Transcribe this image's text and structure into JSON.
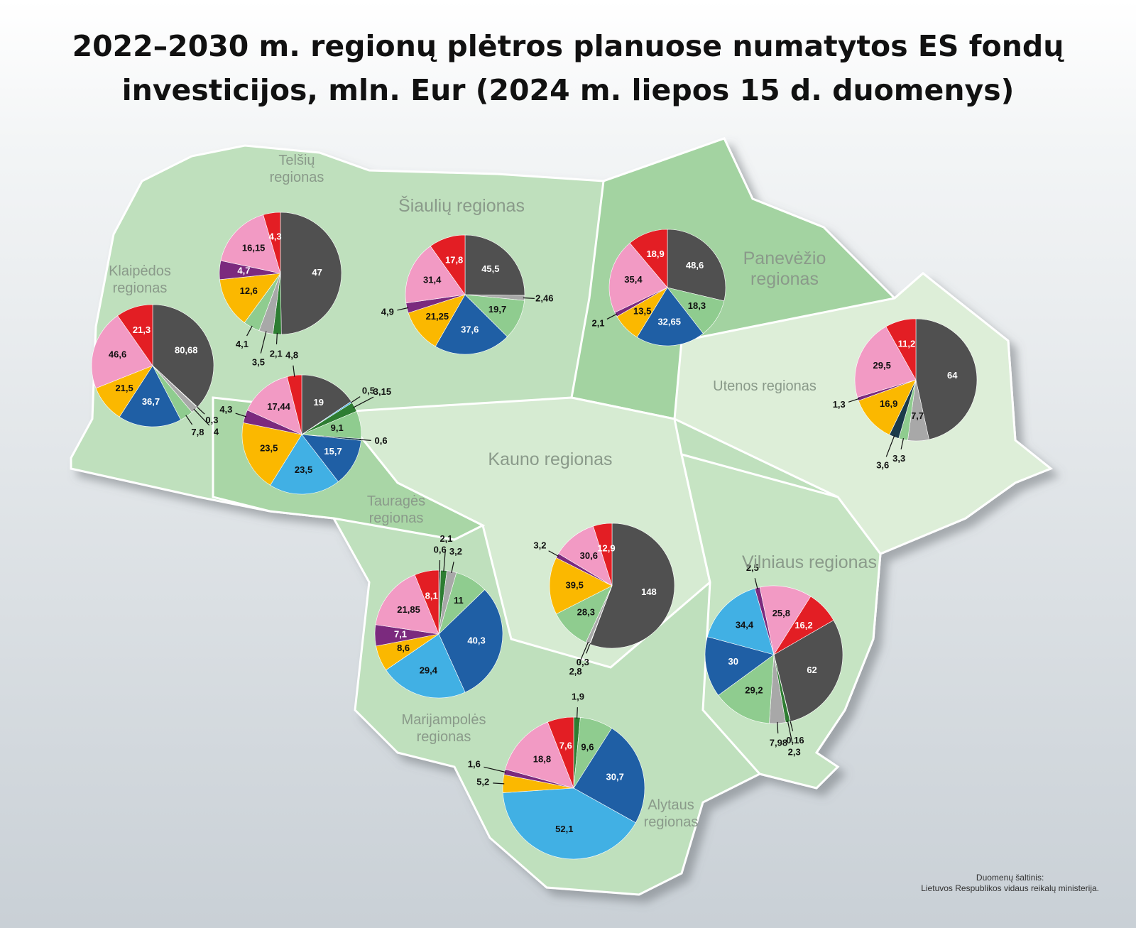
{
  "title": "2022–2030 m. regionų plėtros planuose numatytos ES fondų investicijos, mln. Eur (2024 m. liepos 15 d. duomenys)",
  "source": [
    "Duomenų šaltinis:",
    "Lietuvos Respublikos vidaus reikalų ministerija."
  ],
  "chart_data": [
    {
      "type": "pie",
      "title": "Telšių regionas",
      "values": [
        47,
        2.1,
        3.5,
        4.1,
        12.6,
        4.7,
        16.15,
        4.3
      ],
      "value_labels": [
        "47",
        "2,1",
        "3,5",
        "4,1",
        "12,6",
        "4,7",
        "16,15",
        "4,3"
      ],
      "colors": [
        "#505050",
        "#2e7d32",
        "#a8a8a8",
        "#8fcc8f",
        "#fbb800",
        "#7b2a7e",
        "#f29ac4",
        "#e31e24"
      ]
    },
    {
      "type": "pie",
      "title": "Šiaulių regionas",
      "values": [
        45.5,
        2.46,
        19.7,
        37.6,
        21.25,
        4.9,
        31.4,
        17.8
      ],
      "value_labels": [
        "45,5",
        "2,46",
        "19,7",
        "37,6",
        "21,25",
        "4,9",
        "31,4",
        "17,8"
      ],
      "colors": [
        "#505050",
        "#a8a8a8",
        "#8fcc8f",
        "#1f5fa5",
        "#fbb800",
        "#7b2a7e",
        "#f29ac4",
        "#e31e24"
      ]
    },
    {
      "type": "pie",
      "title": "Panevėžio regionas",
      "values": [
        48.6,
        18.3,
        32.65,
        13.5,
        2.1,
        35.4,
        18.9
      ],
      "value_labels": [
        "48,6",
        "18,3",
        "32,65",
        "13,5",
        "2,1",
        "35,4",
        "18,9"
      ],
      "colors": [
        "#505050",
        "#8fcc8f",
        "#1f5fa5",
        "#fbb800",
        "#7b2a7e",
        "#f29ac4",
        "#e31e24"
      ]
    },
    {
      "type": "pie",
      "title": "Klaipėdos regionas",
      "values": [
        80.68,
        0.3,
        4,
        7.8,
        36.7,
        21.5,
        46.6,
        21.3
      ],
      "value_labels": [
        "80,68",
        "0,3",
        "4",
        "7,8",
        "36,7",
        "21,5",
        "46,6",
        "21,3"
      ],
      "colors": [
        "#505050",
        "#2e7d32",
        "#a8a8a8",
        "#8fcc8f",
        "#1f5fa5",
        "#fbb800",
        "#f29ac4",
        "#e31e24"
      ]
    },
    {
      "type": "pie",
      "title": "Tauragės regionas",
      "values": [
        19,
        0.5,
        3.15,
        9.1,
        0.6,
        15.7,
        23.5,
        23.5,
        4.3,
        17.44,
        4.8
      ],
      "value_labels": [
        "19",
        "0,5",
        "3,15",
        "9,1",
        "0,6",
        "15,7",
        "23,5",
        "23,5",
        "4,3",
        "17,44",
        "4,8"
      ],
      "colors": [
        "#505050",
        "#41b0e4",
        "#2e7d32",
        "#8fcc8f",
        "#1a3a4a",
        "#1f5fa5",
        "#41b0e4",
        "#fbb800",
        "#7b2a7e",
        "#f29ac4",
        "#e31e24"
      ]
    },
    {
      "type": "pie",
      "title": "Utenos regionas",
      "values": [
        64,
        7.7,
        3.3,
        3.6,
        16.9,
        1.3,
        29.5,
        11.2
      ],
      "value_labels": [
        "64",
        "7,7",
        "3,3",
        "3,6",
        "16,9",
        "1,3",
        "29,5",
        "11,2"
      ],
      "colors": [
        "#505050",
        "#a8a8a8",
        "#8fcc8f",
        "#1a3a4a",
        "#fbb800",
        "#7b2a7e",
        "#f29ac4",
        "#e31e24"
      ]
    },
    {
      "type": "pie",
      "title": "Kauno regionas",
      "values": [
        148,
        0.3,
        2.8,
        28.3,
        39.5,
        3.2,
        30.6,
        12.9
      ],
      "value_labels": [
        "148",
        "0,3",
        "2,8",
        "28,3",
        "39,5",
        "3,2",
        "30,6",
        "12,9"
      ],
      "colors": [
        "#505050",
        "#2e7d32",
        "#a8a8a8",
        "#8fcc8f",
        "#fbb800",
        "#7b2a7e",
        "#f29ac4",
        "#e31e24"
      ]
    },
    {
      "type": "pie",
      "title": "Marijampolės regionas",
      "values": [
        0.6,
        2.1,
        3.2,
        11,
        40.3,
        29.4,
        8.6,
        7.1,
        21.85,
        8.1
      ],
      "value_labels": [
        "0,6",
        "2,1",
        "3,2",
        "11",
        "40,3",
        "29,4",
        "8,6",
        "7,1",
        "21,85",
        "8,1"
      ],
      "colors": [
        "#505050",
        "#2e7d32",
        "#a8a8a8",
        "#8fcc8f",
        "#1f5fa5",
        "#41b0e4",
        "#fbb800",
        "#7b2a7e",
        "#f29ac4",
        "#e31e24"
      ]
    },
    {
      "type": "pie",
      "title": "Vilniaus regionas",
      "values": [
        62,
        0.16,
        2.3,
        7.98,
        29.2,
        30,
        34.4,
        2.5,
        25.8,
        16.2
      ],
      "value_labels": [
        "62",
        "0,16",
        "2,3",
        "7,98",
        "29,2",
        "30",
        "34,4",
        "2,5",
        "25,8",
        "16,2"
      ],
      "colors": [
        "#505050",
        "#1a3a4a",
        "#2e7d32",
        "#a8a8a8",
        "#8fcc8f",
        "#1f5fa5",
        "#41b0e4",
        "#7b2a7e",
        "#f29ac4",
        "#e31e24"
      ]
    },
    {
      "type": "pie",
      "title": "Alytaus regionas",
      "values": [
        1.9,
        9.6,
        30.7,
        52.1,
        5.2,
        1.6,
        18.8,
        7.6
      ],
      "value_labels": [
        "1,9",
        "9,6",
        "30,7",
        "52,1",
        "5,2",
        "1,6",
        "18,8",
        "7,6"
      ],
      "colors": [
        "#2e7d32",
        "#8fcc8f",
        "#1f5fa5",
        "#41b0e4",
        "#fbb800",
        "#7b2a7e",
        "#f29ac4",
        "#e31e24"
      ]
    }
  ]
}
